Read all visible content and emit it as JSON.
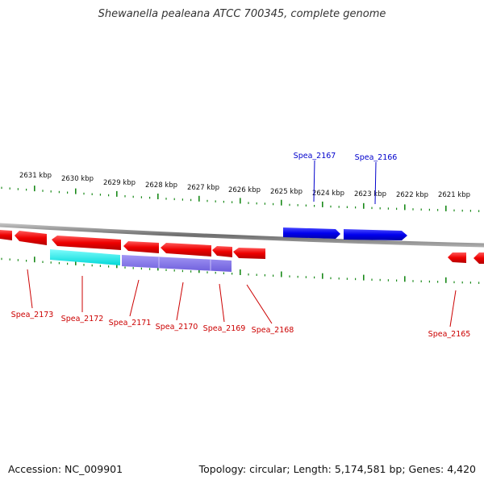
{
  "title": "Shewanella pealeana ATCC 700345, complete genome",
  "footer": {
    "accession": "Accession: NC_009901",
    "summary": "Topology: circular; Length: 5,174,581 bp; Genes: 4,420"
  },
  "scale_labels": [
    "2631 kbp",
    "2630 kbp",
    "2629 kbp",
    "2628 kbp",
    "2627 kbp",
    "2626 kbp",
    "2625 kbp",
    "2624 kbp",
    "2623 kbp",
    "2622 kbp",
    "2621 kbp"
  ],
  "genes": {
    "forward": [
      {
        "label": "Spea_2167",
        "color": "#0000ff"
      },
      {
        "label": "Spea_2166",
        "color": "#0000ff"
      }
    ],
    "reverse": [
      {
        "label": "Spea_2173",
        "color": "#ff0000"
      },
      {
        "label": "Spea_2172",
        "color": "#ff0000"
      },
      {
        "label": "Spea_2171",
        "color": "#ff0000"
      },
      {
        "label": "Spea_2170",
        "color": "#ff0000"
      },
      {
        "label": "Spea_2169",
        "color": "#ff0000"
      },
      {
        "label": "Spea_2168",
        "color": "#ff0000"
      },
      {
        "label": "Spea_2165",
        "color": "#ff0000"
      }
    ]
  },
  "colors": {
    "forward_gene": "#0000ff",
    "reverse_gene": "#ff0000",
    "highlight_cyan": "#00e5e5",
    "highlight_purple": "#7b68ee",
    "tick": "#1a8a1a",
    "backbone": "#808080",
    "forward_label": "#0000cc",
    "reverse_label": "#cc0000"
  }
}
